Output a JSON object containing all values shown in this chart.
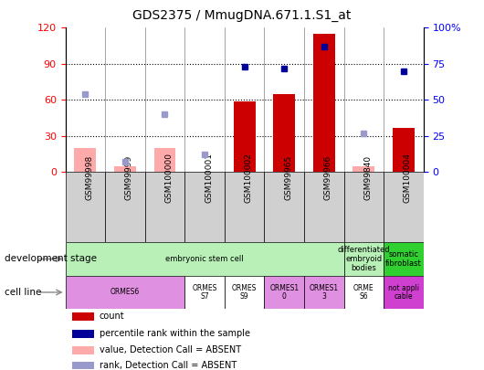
{
  "title": "GDS2375 / MmugDNA.671.1.S1_at",
  "samples": [
    "GSM99998",
    "GSM99999",
    "GSM100000",
    "GSM100001",
    "GSM100002",
    "GSM99965",
    "GSM99966",
    "GSM99840",
    "GSM100004"
  ],
  "count_values": [
    null,
    null,
    null,
    null,
    59,
    65,
    115,
    null,
    37
  ],
  "rank_values": [
    null,
    null,
    null,
    null,
    73,
    72,
    87,
    null,
    70
  ],
  "count_absent": [
    20,
    5,
    20,
    null,
    null,
    null,
    null,
    5,
    null
  ],
  "rank_absent": [
    54,
    7,
    40,
    12,
    null,
    null,
    null,
    27,
    null
  ],
  "ylim_left": [
    0,
    120
  ],
  "ylim_right": [
    0,
    100
  ],
  "yticks_left": [
    0,
    30,
    60,
    90,
    120
  ],
  "yticks_right": [
    0,
    25,
    50,
    75,
    100
  ],
  "grid_values": [
    30,
    60,
    90
  ],
  "dev_stage_groups": [
    {
      "label": "embryonic stem cell",
      "start": 0,
      "end": 7,
      "color": "#b8f0b8"
    },
    {
      "label": "differentiated\nembryoid\nbodies",
      "start": 7,
      "end": 8,
      "color": "#b8f0b8"
    },
    {
      "label": "somatic\nfibroblast",
      "start": 8,
      "end": 9,
      "color": "#30d030"
    }
  ],
  "cell_line_groups": [
    {
      "label": "ORMES6",
      "start": 0,
      "end": 3,
      "color": "#e090e0"
    },
    {
      "label": "ORMES\nS7",
      "start": 3,
      "end": 4,
      "color": "#ffffff"
    },
    {
      "label": "ORMES\nS9",
      "start": 4,
      "end": 5,
      "color": "#ffffff"
    },
    {
      "label": "ORMES1\n0",
      "start": 5,
      "end": 6,
      "color": "#e090e0"
    },
    {
      "label": "ORMES1\n3",
      "start": 6,
      "end": 7,
      "color": "#e090e0"
    },
    {
      "label": "ORME\nS6",
      "start": 7,
      "end": 8,
      "color": "#ffffff"
    },
    {
      "label": "not appli\ncable",
      "start": 8,
      "end": 9,
      "color": "#d040d0"
    }
  ],
  "bar_color_present": "#cc0000",
  "bar_color_absent": "#ffaaaa",
  "dot_color_present": "#000099",
  "dot_color_absent": "#9999cc",
  "label_left": "development stage",
  "label_cell": "cell line",
  "legend_items": [
    {
      "label": "count",
      "color": "#cc0000"
    },
    {
      "label": "percentile rank within the sample",
      "color": "#000099"
    },
    {
      "label": "value, Detection Call = ABSENT",
      "color": "#ffaaaa"
    },
    {
      "label": "rank, Detection Call = ABSENT",
      "color": "#9999cc"
    }
  ],
  "plot_bg": "#ffffff",
  "sample_box_bg": "#d0d0d0"
}
